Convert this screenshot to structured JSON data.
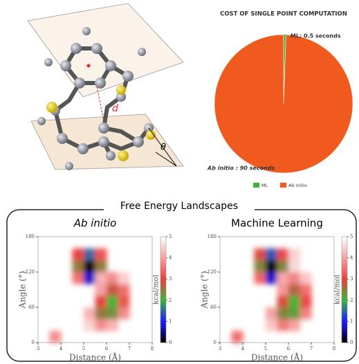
{
  "molecule_labels": [
    "d",
    "θ"
  ],
  "panel_title": "Free Energy Landscapes",
  "chart_data": [
    {
      "type": "pie",
      "title": "COST OF SINGLE POINT COMPUTATION",
      "categories": [
        "ML",
        "Ab initio"
      ],
      "values": [
        0.5,
        90
      ],
      "value_labels": [
        "ML: 0.5 seconds",
        "Ab initio : 90 seconds"
      ],
      "colors": [
        "#3cb43c",
        "#f05a1e"
      ],
      "legend": "bottom"
    },
    {
      "type": "heatmap",
      "title": "Ab initio",
      "title_italic": true,
      "x_bins": [
        3,
        3.5,
        4,
        4.5,
        5,
        5.5,
        6,
        6.5,
        7,
        7.5,
        8
      ],
      "y_bins": [
        0,
        20,
        40,
        60,
        80,
        100,
        120,
        140,
        160,
        180
      ],
      "z": [
        [
          null,
          3.8,
          null,
          null,
          null,
          null,
          null,
          null,
          null,
          null
        ],
        [
          null,
          null,
          null,
          null,
          4.5,
          3.8,
          4.2,
          null,
          null,
          null
        ],
        [
          null,
          null,
          null,
          null,
          4.2,
          2.5,
          2.3,
          3.8,
          null,
          null
        ],
        [
          null,
          null,
          null,
          null,
          null,
          3.0,
          2.0,
          3.2,
          null,
          null
        ],
        [
          null,
          null,
          null,
          null,
          null,
          4.0,
          2.8,
          3.5,
          null,
          null
        ],
        [
          null,
          null,
          null,
          3.5,
          0.8,
          4.2,
          3.8,
          4.5,
          null,
          null
        ],
        [
          null,
          null,
          null,
          2.5,
          0.0,
          2.5,
          null,
          null,
          null,
          null
        ],
        [
          null,
          null,
          null,
          3.0,
          1.5,
          3.2,
          null,
          null,
          null,
          null
        ],
        [
          null,
          null,
          null,
          null,
          null,
          null,
          null,
          null,
          null,
          null
        ]
      ],
      "xlim": [
        3,
        8
      ],
      "ylim": [
        0,
        180
      ],
      "xticks": [
        3,
        4,
        5,
        6,
        7,
        8
      ],
      "yticks": [
        0,
        60,
        120,
        180
      ],
      "xlabel": "Distance (Å)",
      "ylabel": "Angle (°)",
      "zlim": [
        0,
        5
      ],
      "zticks": [
        0,
        1,
        2,
        3,
        4,
        5
      ],
      "zlabel": "kcal/mol",
      "colorscale": [
        "#000000",
        "#1a1aff",
        "#3cb43c",
        "#e8403c",
        "#f6a0a0",
        "#ffffff"
      ]
    },
    {
      "type": "heatmap",
      "title": "Machine Learning",
      "title_italic": false,
      "x_bins": [
        3,
        3.5,
        4,
        4.5,
        5,
        5.5,
        6,
        6.5,
        7,
        7.5,
        8
      ],
      "y_bins": [
        0,
        20,
        40,
        60,
        80,
        100,
        120,
        140,
        160,
        180
      ],
      "z": [
        [
          null,
          3.5,
          null,
          null,
          null,
          null,
          null,
          null,
          null,
          null
        ],
        [
          null,
          null,
          null,
          null,
          4.4,
          3.6,
          4.0,
          null,
          null,
          null
        ],
        [
          null,
          null,
          null,
          null,
          4.0,
          2.4,
          2.2,
          3.7,
          null,
          null
        ],
        [
          null,
          null,
          null,
          null,
          null,
          2.9,
          2.0,
          3.1,
          null,
          null
        ],
        [
          null,
          null,
          null,
          null,
          null,
          3.9,
          2.7,
          3.5,
          null,
          null
        ],
        [
          null,
          null,
          null,
          3.4,
          0.8,
          4.1,
          3.7,
          4.4,
          null,
          null
        ],
        [
          null,
          null,
          null,
          2.4,
          0.0,
          2.4,
          4.6,
          null,
          null,
          null
        ],
        [
          null,
          null,
          null,
          2.9,
          1.4,
          3.1,
          4.5,
          null,
          null,
          null
        ],
        [
          null,
          null,
          null,
          null,
          null,
          null,
          null,
          null,
          null,
          null
        ]
      ],
      "xlim": [
        3,
        8
      ],
      "ylim": [
        0,
        180
      ],
      "xticks": [
        3,
        4,
        5,
        6,
        7,
        8
      ],
      "yticks": [
        0,
        60,
        120,
        180
      ],
      "xlabel": "Distance (Å)",
      "ylabel": "Angle (°)",
      "zlim": [
        0,
        5
      ],
      "zticks": [
        0,
        1,
        2,
        3,
        4,
        5
      ],
      "zlabel": "kcal/mol",
      "colorscale": [
        "#000000",
        "#1a1aff",
        "#3cb43c",
        "#e8403c",
        "#f6a0a0",
        "#ffffff"
      ]
    }
  ]
}
